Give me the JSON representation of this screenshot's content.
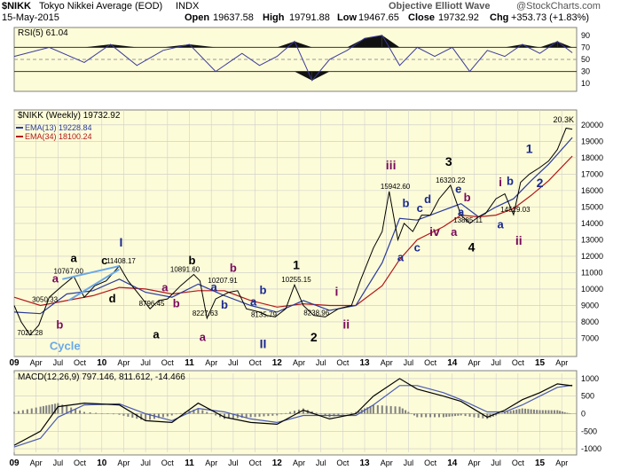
{
  "header": {
    "symbol": "$NIKK",
    "name": "Tokyo Nikkei Average (EOD)",
    "exchange": "INDX",
    "date": "15-May-2015",
    "open_label": "Open",
    "open": "19637.58",
    "high_label": "High",
    "high": "19791.88",
    "low_label": "Low",
    "low": "19467.65",
    "close_label": "Close",
    "close": "19732.92",
    "chg_label": "Chg",
    "chg": "+353.73 (+1.83%)",
    "note": "Objective Elliott Wave",
    "copyright": "@StockCharts.com"
  },
  "colors": {
    "panel_bg": "#fdfcd8",
    "price": "#000000",
    "ema13": "#2a3a9c",
    "ema34": "#b01818",
    "rsi": "#3a3a9c",
    "macd_line": "#000000",
    "macd_signal": "#4a5ab0",
    "macd_hist": "#808080",
    "trend_blue": "#6aa8e8",
    "trend_red": "#d21c1c",
    "wave_black": "#000000",
    "wave_blue": "#1a2a90",
    "wave_purple": "#7a0a5c"
  },
  "chart_data": [
    {
      "type": "line",
      "title": "RSI(5) 61.04",
      "ylim": [
        0,
        100
      ],
      "y_ticks": [
        10,
        30,
        50,
        70,
        90
      ],
      "levels": [
        30,
        70
      ],
      "series": [
        {
          "name": "RSI(5)",
          "x": [
            2009.0,
            2009.4,
            2009.8,
            2010.1,
            2010.4,
            2010.7,
            2011.0,
            2011.3,
            2011.6,
            2011.8,
            2012.0,
            2012.2,
            2012.4,
            2012.6,
            2012.8,
            2013.0,
            2013.2,
            2013.4,
            2013.6,
            2013.8,
            2014.0,
            2014.2,
            2014.4,
            2014.6,
            2014.8,
            2015.0,
            2015.2,
            2015.37
          ],
          "values": [
            55,
            70,
            45,
            75,
            40,
            65,
            75,
            30,
            60,
            40,
            55,
            80,
            15,
            50,
            65,
            85,
            90,
            40,
            70,
            55,
            70,
            30,
            65,
            55,
            75,
            60,
            80,
            61
          ]
        }
      ]
    },
    {
      "type": "line",
      "title": "$NIKK (Weekly) 19732.92",
      "ylim": [
        6000,
        20800
      ],
      "y_ticks": [
        7000,
        8000,
        9000,
        10000,
        11000,
        12000,
        13000,
        14000,
        15000,
        16000,
        17000,
        18000,
        19000,
        20000
      ],
      "last_label": "20.3K",
      "x_ticks": [
        "09",
        "Apr",
        "Jul",
        "Oct",
        "10",
        "Apr",
        "Jul",
        "Oct",
        "11",
        "Apr",
        "Jul",
        "Oct",
        "12",
        "Apr",
        "Jul",
        "Oct",
        "13",
        "Apr",
        "Jul",
        "Oct",
        "14",
        "Apr",
        "Jul",
        "Oct",
        "15",
        "Apr"
      ],
      "series": [
        {
          "name": "$NIKK",
          "x": [
            2009.0,
            2009.08,
            2009.18,
            2009.28,
            2009.4,
            2009.55,
            2009.68,
            2009.8,
            2009.92,
            2010.05,
            2010.2,
            2010.3,
            2010.45,
            2010.55,
            2010.65,
            2010.75,
            2010.9,
            2011.05,
            2011.12,
            2011.2,
            2011.3,
            2011.45,
            2011.55,
            2011.65,
            2011.8,
            2011.88,
            2011.98,
            2012.1,
            2012.2,
            2012.3,
            2012.42,
            2012.55,
            2012.7,
            2012.85,
            2012.95,
            2013.1,
            2013.2,
            2013.28,
            2013.38,
            2013.45,
            2013.55,
            2013.65,
            2013.75,
            2013.85,
            2013.98,
            2014.1,
            2014.2,
            2014.3,
            2014.38,
            2014.5,
            2014.6,
            2014.7,
            2014.78,
            2014.88,
            2015.0,
            2015.1,
            2015.2,
            2015.3,
            2015.37
          ],
          "values": [
            9000,
            8000,
            7200,
            7800,
            9500,
            10200,
            10767,
            9500,
            10200,
            10500,
            11408,
            10500,
            9500,
            8796,
            9300,
            9400,
            10200,
            10891,
            10500,
            8228,
            9400,
            9800,
            9900,
            8800,
            8600,
            8400,
            8300,
            8800,
            10255,
            9000,
            8400,
            8300,
            8800,
            9000,
            10500,
            12500,
            13500,
            15943,
            13000,
            14000,
            13500,
            14500,
            14500,
            15500,
            16320,
            14500,
            14000,
            14400,
            14600,
            15500,
            15800,
            14529,
            16500,
            17000,
            17400,
            17800,
            18500,
            19800,
            19733
          ]
        },
        {
          "name": "EMA(13) 19228.84",
          "x": [
            2009.0,
            2009.3,
            2009.6,
            2009.9,
            2010.2,
            2010.5,
            2010.8,
            2011.1,
            2011.4,
            2011.7,
            2012.0,
            2012.3,
            2012.6,
            2012.9,
            2013.2,
            2013.4,
            2013.6,
            2013.9,
            2014.1,
            2014.3,
            2014.5,
            2014.7,
            2014.9,
            2015.1,
            2015.37
          ],
          "values": [
            8600,
            8500,
            9700,
            9900,
            10600,
            9800,
            9500,
            10300,
            9600,
            9000,
            8600,
            9300,
            8700,
            9000,
            11600,
            14300,
            14200,
            14800,
            15200,
            14400,
            15000,
            15500,
            16600,
            17600,
            19229
          ]
        },
        {
          "name": "EMA(34) 18100.24",
          "x": [
            2009.0,
            2009.3,
            2009.6,
            2009.9,
            2010.2,
            2010.5,
            2010.8,
            2011.1,
            2011.4,
            2011.7,
            2012.0,
            2012.3,
            2012.6,
            2012.9,
            2013.2,
            2013.4,
            2013.6,
            2013.9,
            2014.1,
            2014.3,
            2014.5,
            2014.7,
            2014.9,
            2015.1,
            2015.37
          ],
          "values": [
            9500,
            9000,
            9300,
            9600,
            10100,
            10000,
            9700,
            9900,
            9900,
            9300,
            8900,
            9100,
            9000,
            9000,
            10200,
            11800,
            13000,
            13800,
            14500,
            14400,
            14500,
            14900,
            15700,
            16600,
            18100
          ]
        }
      ],
      "annotations": [
        {
          "text": "7021.28",
          "x": 2009.18,
          "y": 7021
        },
        {
          "text": "3050.33",
          "x": 2009.35,
          "y": 9050
        },
        {
          "text": "10767.00",
          "x": 2009.62,
          "y": 10767
        },
        {
          "text": "11408.17",
          "x": 2010.22,
          "y": 11408
        },
        {
          "text": "8796.45",
          "x": 2010.57,
          "y": 8796
        },
        {
          "text": "10891.60",
          "x": 2010.95,
          "y": 10892
        },
        {
          "text": "10207.91",
          "x": 2011.38,
          "y": 10208
        },
        {
          "text": "8227.63",
          "x": 2011.18,
          "y": 8228
        },
        {
          "text": "8135.79",
          "x": 2011.85,
          "y": 8136
        },
        {
          "text": "10255.15",
          "x": 2012.22,
          "y": 10255
        },
        {
          "text": "8238.96",
          "x": 2012.45,
          "y": 8239
        },
        {
          "text": "15942.60",
          "x": 2013.35,
          "y": 15943
        },
        {
          "text": "16320.22",
          "x": 2013.98,
          "y": 16320
        },
        {
          "text": "13885.11",
          "x": 2014.18,
          "y": 13885
        },
        {
          "text": "14529.03",
          "x": 2014.72,
          "y": 14529
        }
      ],
      "wave_labels": [
        {
          "text": "Cycle",
          "color": "trend_blue",
          "x": 2009.58,
          "y": 6300
        },
        {
          "text": "a",
          "color": "wave_black",
          "x": 2009.68,
          "y": 11650
        },
        {
          "text": "a",
          "color": "wave_purple",
          "x": 2009.47,
          "y": 10400
        },
        {
          "text": "b",
          "color": "wave_purple",
          "x": 2009.52,
          "y": 7600
        },
        {
          "text": "c",
          "color": "wave_black",
          "x": 2010.03,
          "y": 11500
        },
        {
          "text": "d",
          "color": "wave_black",
          "x": 2010.12,
          "y": 9200
        },
        {
          "text": "I",
          "color": "wave_blue",
          "x": 2010.22,
          "y": 12600
        },
        {
          "text": "a",
          "color": "wave_black",
          "x": 2010.62,
          "y": 7000
        },
        {
          "text": "a",
          "color": "wave_purple",
          "x": 2010.72,
          "y": 9850
        },
        {
          "text": "b",
          "color": "wave_purple",
          "x": 2010.85,
          "y": 8900
        },
        {
          "text": "b",
          "color": "wave_black",
          "x": 2011.03,
          "y": 11500
        },
        {
          "text": "b",
          "color": "wave_purple",
          "x": 2011.5,
          "y": 11050
        },
        {
          "text": "a",
          "color": "wave_blue",
          "x": 2011.28,
          "y": 9900
        },
        {
          "text": "b",
          "color": "wave_blue",
          "x": 2011.4,
          "y": 8800
        },
        {
          "text": "a",
          "color": "wave_purple",
          "x": 2011.15,
          "y": 6850
        },
        {
          "text": "a",
          "color": "wave_blue",
          "x": 2011.73,
          "y": 9000
        },
        {
          "text": "b",
          "color": "wave_blue",
          "x": 2011.84,
          "y": 9700
        },
        {
          "text": "II",
          "color": "wave_blue",
          "x": 2011.84,
          "y": 6400
        },
        {
          "text": "1",
          "color": "wave_black",
          "x": 2012.22,
          "y": 11200
        },
        {
          "text": "2",
          "color": "wave_black",
          "x": 2012.42,
          "y": 6800
        },
        {
          "text": "i",
          "color": "wave_purple",
          "x": 2012.68,
          "y": 9600
        },
        {
          "text": "ii",
          "color": "wave_purple",
          "x": 2012.79,
          "y": 7600
        },
        {
          "text": "iii",
          "color": "wave_purple",
          "x": 2013.3,
          "y": 17300
        },
        {
          "text": "a",
          "color": "wave_blue",
          "x": 2013.41,
          "y": 11700
        },
        {
          "text": "b",
          "color": "wave_blue",
          "x": 2013.47,
          "y": 15000
        },
        {
          "text": "c",
          "color": "wave_blue",
          "x": 2013.6,
          "y": 12300
        },
        {
          "text": "c",
          "color": "wave_blue",
          "x": 2013.63,
          "y": 14700
        },
        {
          "text": "d",
          "color": "wave_blue",
          "x": 2013.72,
          "y": 15250
        },
        {
          "text": "iv",
          "color": "wave_purple",
          "x": 2013.8,
          "y": 13250
        },
        {
          "text": "3",
          "color": "wave_black",
          "x": 2013.96,
          "y": 17500
        },
        {
          "text": "e",
          "color": "wave_blue",
          "x": 2014.07,
          "y": 15850
        },
        {
          "text": "a",
          "color": "wave_blue",
          "x": 2014.1,
          "y": 14450
        },
        {
          "text": "b",
          "color": "wave_purple",
          "x": 2014.17,
          "y": 15350
        },
        {
          "text": "a",
          "color": "wave_purple",
          "x": 2014.02,
          "y": 13250
        },
        {
          "text": "4",
          "color": "wave_black",
          "x": 2014.22,
          "y": 12300
        },
        {
          "text": "a",
          "color": "wave_blue",
          "x": 2014.55,
          "y": 13700
        },
        {
          "text": "i",
          "color": "wave_purple",
          "x": 2014.55,
          "y": 16250
        },
        {
          "text": "b",
          "color": "wave_blue",
          "x": 2014.66,
          "y": 16350
        },
        {
          "text": "ii",
          "color": "wave_purple",
          "x": 2014.76,
          "y": 12700
        },
        {
          "text": "1",
          "color": "wave_blue",
          "x": 2014.88,
          "y": 18300
        },
        {
          "text": "2",
          "color": "wave_blue",
          "x": 2015.0,
          "y": 16200
        }
      ]
    },
    {
      "type": "line",
      "title": "MACD(12,26,9) 797.146, 811.612, -14.466",
      "ylim": [
        -1100,
        1150
      ],
      "y_ticks": [
        -1000,
        -500,
        0,
        500,
        1000
      ],
      "series": [
        {
          "name": "MACD",
          "x": [
            2009.0,
            2009.3,
            2009.5,
            2009.8,
            2010.2,
            2010.5,
            2010.8,
            2011.1,
            2011.4,
            2011.7,
            2012.0,
            2012.3,
            2012.6,
            2012.9,
            2013.1,
            2013.4,
            2013.6,
            2013.9,
            2014.1,
            2014.4,
            2014.6,
            2014.8,
            2015.0,
            2015.2,
            2015.37
          ],
          "values": [
            -900,
            -500,
            200,
            300,
            250,
            -200,
            -250,
            300,
            -100,
            -250,
            -300,
            100,
            -150,
            0,
            500,
            1000,
            700,
            500,
            350,
            -100,
            100,
            400,
            600,
            850,
            797
          ]
        },
        {
          "name": "Signal",
          "x": [
            2009.0,
            2009.3,
            2009.5,
            2009.8,
            2010.2,
            2010.5,
            2010.8,
            2011.1,
            2011.4,
            2011.7,
            2012.0,
            2012.3,
            2012.6,
            2012.9,
            2013.1,
            2013.4,
            2013.6,
            2013.9,
            2014.1,
            2014.4,
            2014.6,
            2014.8,
            2015.0,
            2015.2,
            2015.37
          ],
          "values": [
            -950,
            -700,
            -100,
            250,
            280,
            0,
            -200,
            150,
            50,
            -150,
            -250,
            -50,
            -50,
            -50,
            250,
            800,
            800,
            600,
            400,
            50,
            50,
            250,
            500,
            750,
            812
          ]
        }
      ]
    }
  ]
}
